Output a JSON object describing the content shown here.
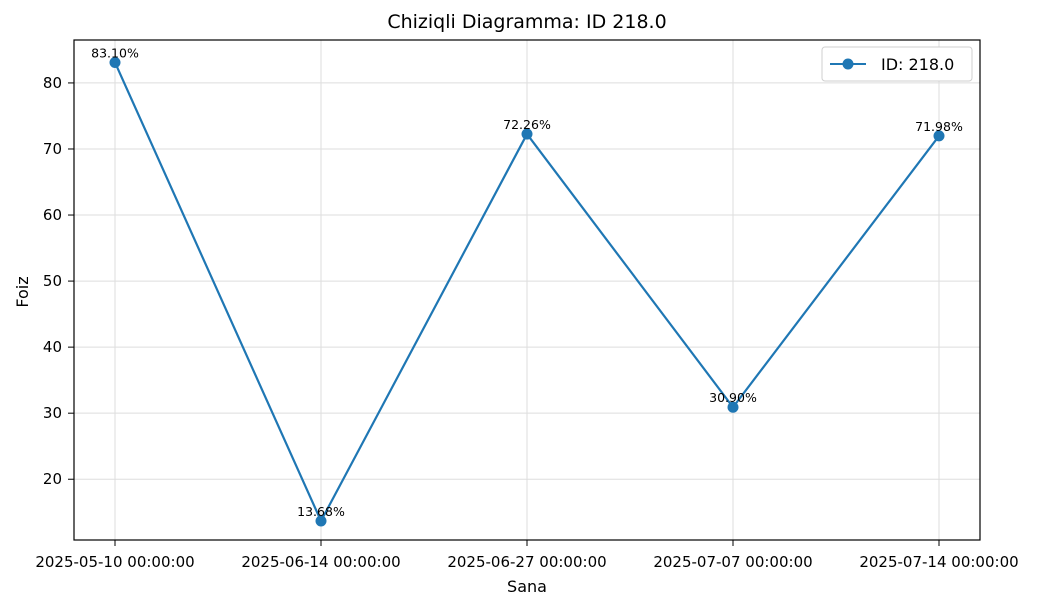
{
  "chart_data": {
    "type": "line",
    "title": "Chiziqli Diagramma: ID 218.0",
    "xlabel": "Sana",
    "ylabel": "Foiz",
    "categories": [
      "2025-05-10 00:00:00",
      "2025-06-14 00:00:00",
      "2025-06-27 00:00:00",
      "2025-07-07 00:00:00",
      "2025-07-14 00:00:00"
    ],
    "series": [
      {
        "name": "ID: 218.0",
        "values": [
          83.1,
          13.68,
          72.26,
          30.9,
          71.98
        ],
        "data_labels": [
          "83.10%",
          "13.68%",
          "72.26%",
          "30.90%",
          "71.98%"
        ],
        "color": "#1f77b4"
      }
    ],
    "ylim": [
      10.8,
      86.5
    ],
    "yticks": [
      20,
      30,
      40,
      50,
      60,
      70,
      80
    ],
    "grid": true,
    "legend_position": "top-right"
  }
}
